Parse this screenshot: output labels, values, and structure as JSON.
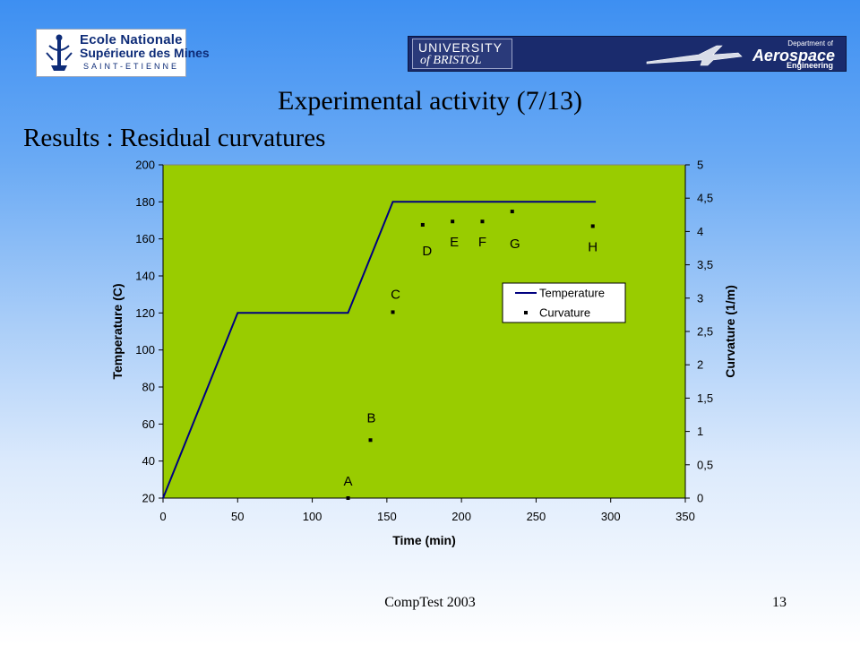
{
  "header": {
    "emse_logo": {
      "line1": "Ecole Nationale",
      "line2": "Supérieure des Mines",
      "line3": "SAINT-ETIENNE"
    },
    "bristol_logo": {
      "line1": "UNIVERSITY",
      "line2": "of BRISTOL"
    },
    "aerospace_logo": {
      "dept": "Department of",
      "word": "Aerospace",
      "line2": "Engineering"
    }
  },
  "slide": {
    "title": "Experimental activity (7/13)",
    "subtitle": "Results : Residual curvatures"
  },
  "footer": {
    "center": "CompTest 2003",
    "page": "13"
  },
  "chart_data": {
    "type": "line",
    "xlabel": "Time (min)",
    "ylabel": "Temperature (C)",
    "y2label": "Curvature (1/m)",
    "xlim": [
      0,
      350
    ],
    "ylim": [
      20,
      200
    ],
    "y2lim": [
      0,
      5
    ],
    "xticks": [
      0,
      50,
      100,
      150,
      200,
      250,
      300,
      350
    ],
    "yticks": [
      20,
      40,
      60,
      80,
      100,
      120,
      140,
      160,
      180,
      200
    ],
    "y2ticks": [
      "0",
      "0,5",
      "1",
      "1,5",
      "2",
      "2,5",
      "3",
      "3,5",
      "4",
      "4,5",
      "5"
    ],
    "plot_background": "#99cc00",
    "grid": false,
    "legend_position": "right",
    "series": [
      {
        "name": "Temperature",
        "kind": "line",
        "axis": "left",
        "color": "#000080",
        "x": [
          0,
          50,
          124,
          154,
          290
        ],
        "y": [
          20,
          120,
          120,
          180,
          180
        ]
      },
      {
        "name": "Curvature",
        "kind": "scatter",
        "axis": "right",
        "color": "#000000",
        "points": [
          {
            "label": "A",
            "x": 124,
            "y": 0
          },
          {
            "label": "B",
            "x": 139,
            "y": 0.87
          },
          {
            "label": "C",
            "x": 154,
            "y": 2.79
          },
          {
            "label": "D",
            "x": 174,
            "y": 4.1
          },
          {
            "label": "E",
            "x": 194,
            "y": 4.15
          },
          {
            "label": "F",
            "x": 214,
            "y": 4.15
          },
          {
            "label": "G",
            "x": 234,
            "y": 4.3
          },
          {
            "label": "H",
            "x": 288,
            "y": 4.08
          }
        ]
      }
    ]
  }
}
